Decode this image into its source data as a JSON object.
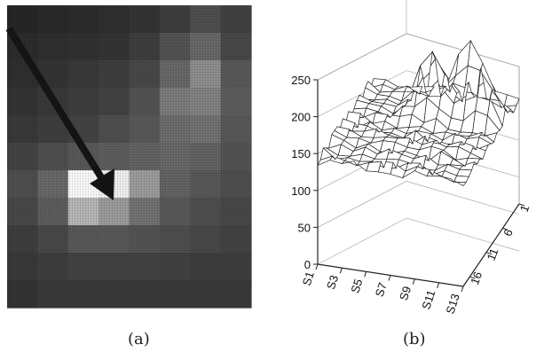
{
  "panels": [
    {
      "label": "(a)",
      "kind": "image",
      "image": {
        "description_name": "pixelated grayscale grid",
        "grid_cols": 8,
        "grid_rows": 11,
        "intensity": [
          [
            0.15,
            0.16,
            0.17,
            0.18,
            0.2,
            0.24,
            0.3,
            0.25
          ],
          [
            0.17,
            0.18,
            0.19,
            0.2,
            0.24,
            0.32,
            0.4,
            0.28
          ],
          [
            0.18,
            0.2,
            0.22,
            0.24,
            0.28,
            0.4,
            0.55,
            0.34
          ],
          [
            0.2,
            0.22,
            0.24,
            0.26,
            0.32,
            0.48,
            0.5,
            0.36
          ],
          [
            0.22,
            0.24,
            0.26,
            0.3,
            0.34,
            0.42,
            0.44,
            0.34
          ],
          [
            0.26,
            0.3,
            0.34,
            0.36,
            0.38,
            0.4,
            0.38,
            0.32
          ],
          [
            0.3,
            0.4,
            0.96,
            0.92,
            0.6,
            0.38,
            0.34,
            0.3
          ],
          [
            0.28,
            0.36,
            0.7,
            0.6,
            0.44,
            0.34,
            0.3,
            0.28
          ],
          [
            0.24,
            0.28,
            0.34,
            0.34,
            0.32,
            0.3,
            0.28,
            0.26
          ],
          [
            0.22,
            0.24,
            0.26,
            0.26,
            0.26,
            0.25,
            0.24,
            0.24
          ],
          [
            0.2,
            0.22,
            0.22,
            0.22,
            0.22,
            0.22,
            0.22,
            0.22
          ]
        ],
        "arrow_icon": "arrow-pointer-icon"
      }
    },
    {
      "label": "(b)",
      "kind": "3d-surface"
    }
  ],
  "chart_data": {
    "type": "surface",
    "z_ticks": [
      "250",
      "200",
      "150",
      "100",
      "50",
      "0"
    ],
    "z_range": [
      0,
      250
    ],
    "x_ticks": [
      "S1",
      "S3",
      "S5",
      "S7",
      "S9",
      "S11",
      "S13"
    ],
    "y_ticks": [
      "1",
      "6",
      "11",
      "16"
    ],
    "grid": true,
    "surface_base_level": 140,
    "peaks": [
      {
        "x": "S7",
        "y": 6,
        "z": 225
      },
      {
        "x": "S9",
        "y": 1,
        "z": 210
      },
      {
        "x": "S11",
        "y": 6,
        "z": 200
      }
    ]
  }
}
